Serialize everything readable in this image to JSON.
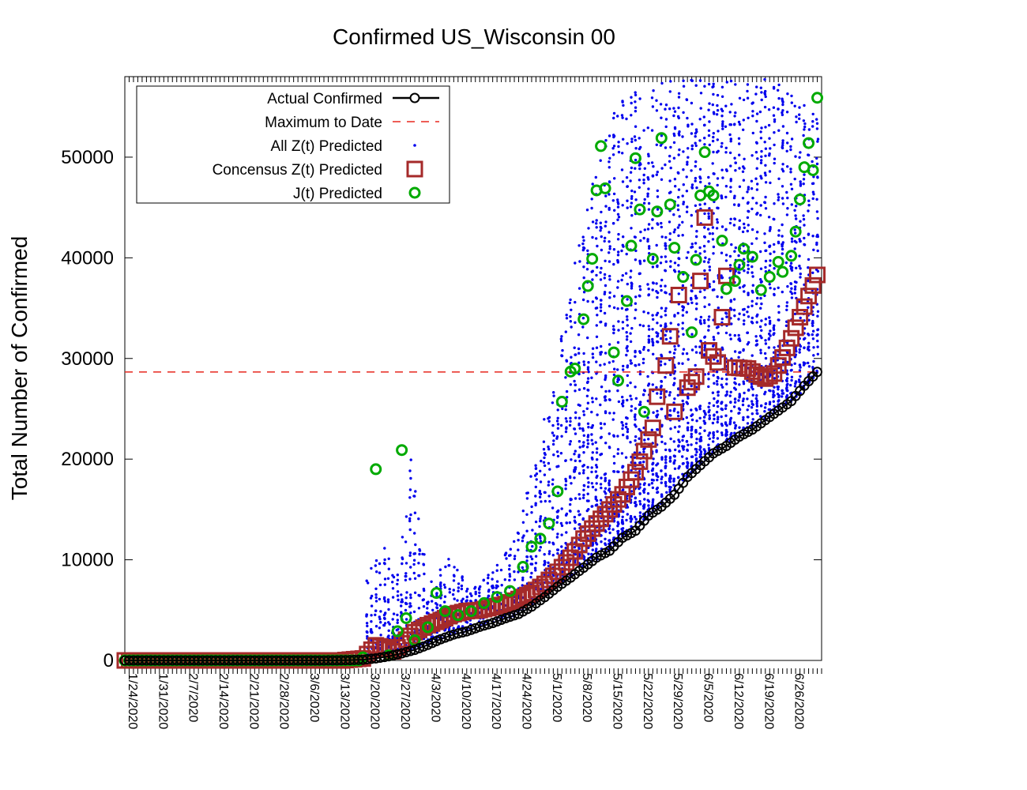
{
  "chart_data": {
    "type": "scatter",
    "title": "Confirmed US_Wisconsin 00",
    "xlabel": "",
    "ylabel": "Total Number of Confirmed",
    "xlim": [
      "1/22/2020",
      "7/1/2020"
    ],
    "ylim": [
      0,
      58000
    ],
    "yticks": [
      0,
      10000,
      20000,
      30000,
      40000,
      50000
    ],
    "ytick_labels": [
      "0",
      "10000",
      "20000",
      "30000",
      "40000",
      "50000"
    ],
    "xtick_labels": [
      "1/24/2020",
      "1/31/2020",
      "2/7/2020",
      "2/14/2020",
      "2/21/2020",
      "2/28/2020",
      "3/6/2020",
      "3/13/2020",
      "3/20/2020",
      "3/27/2020",
      "4/3/2020",
      "4/10/2020",
      "4/17/2020",
      "4/24/2020",
      "5/1/2020",
      "5/8/2020",
      "5/15/2020",
      "5/22/2020",
      "5/29/2020",
      "6/5/2020",
      "6/12/2020",
      "6/19/2020",
      "6/26/2020"
    ],
    "grid": false,
    "legend_position": "top-left",
    "reference_line": {
      "name": "Maximum to Date",
      "value": 28659,
      "color": "#e8281e"
    },
    "series": [
      {
        "name": "Actual Confirmed",
        "style": "line-circle",
        "color": "#000000",
        "points": [
          [
            "1/22/2020",
            0
          ],
          [
            "1/29/2020",
            0
          ],
          [
            "2/5/2020",
            0
          ],
          [
            "2/12/2020",
            0
          ],
          [
            "2/19/2020",
            0
          ],
          [
            "2/26/2020",
            0
          ],
          [
            "3/4/2020",
            0
          ],
          [
            "3/10/2020",
            5
          ],
          [
            "3/14/2020",
            30
          ],
          [
            "3/17/2020",
            72
          ],
          [
            "3/20/2020",
            206
          ],
          [
            "3/23/2020",
            416
          ],
          [
            "3/26/2020",
            707
          ],
          [
            "3/29/2020",
            1055
          ],
          [
            "4/1/2020",
            1550
          ],
          [
            "4/4/2020",
            2112
          ],
          [
            "4/7/2020",
            2578
          ],
          [
            "4/10/2020",
            2885
          ],
          [
            "4/13/2020",
            3341
          ],
          [
            "4/16/2020",
            3721
          ],
          [
            "4/19/2020",
            4199
          ],
          [
            "4/22/2020",
            4620
          ],
          [
            "4/25/2020",
            5356
          ],
          [
            "4/28/2020",
            6289
          ],
          [
            "5/1/2020",
            7314
          ],
          [
            "5/4/2020",
            8236
          ],
          [
            "5/7/2020",
            9215
          ],
          [
            "5/10/2020",
            10219
          ],
          [
            "5/13/2020",
            10902
          ],
          [
            "5/16/2020",
            12187
          ],
          [
            "5/19/2020",
            12885
          ],
          [
            "5/22/2020",
            14396
          ],
          [
            "5/25/2020",
            15277
          ],
          [
            "5/28/2020",
            16462
          ],
          [
            "5/31/2020",
            18230
          ],
          [
            "6/3/2020",
            19400
          ],
          [
            "6/6/2020",
            20571
          ],
          [
            "6/9/2020",
            21308
          ],
          [
            "6/12/2020",
            22246
          ],
          [
            "6/15/2020",
            22932
          ],
          [
            "6/18/2020",
            23876
          ],
          [
            "6/21/2020",
            24819
          ],
          [
            "6/24/2020",
            25763
          ],
          [
            "6/27/2020",
            27286
          ],
          [
            "6/30/2020",
            28659
          ]
        ]
      },
      {
        "name": "Concensus Z(t) Predicted",
        "style": "square",
        "color": "#a52a2a",
        "points": [
          [
            "1/22/2020",
            0
          ],
          [
            "1/29/2020",
            0
          ],
          [
            "2/5/2020",
            0
          ],
          [
            "2/12/2020",
            0
          ],
          [
            "2/19/2020",
            0
          ],
          [
            "2/26/2020",
            0
          ],
          [
            "3/4/2020",
            0
          ],
          [
            "3/12/2020",
            0
          ],
          [
            "3/17/2020",
            200
          ],
          [
            "3/20/2020",
            1500
          ],
          [
            "3/22/2020",
            1300
          ],
          [
            "3/24/2020",
            900
          ],
          [
            "3/26/2020",
            1700
          ],
          [
            "3/29/2020",
            2800
          ],
          [
            "4/1/2020",
            3500
          ],
          [
            "4/4/2020",
            4000
          ],
          [
            "4/7/2020",
            4600
          ],
          [
            "4/10/2020",
            4900
          ],
          [
            "4/13/2020",
            5000
          ],
          [
            "4/16/2020",
            5300
          ],
          [
            "4/19/2020",
            5600
          ],
          [
            "4/22/2020",
            6100
          ],
          [
            "4/25/2020",
            6700
          ],
          [
            "4/28/2020",
            7600
          ],
          [
            "5/1/2020",
            8800
          ],
          [
            "5/4/2020",
            10200
          ],
          [
            "5/7/2020",
            12100
          ],
          [
            "5/10/2020",
            13600
          ],
          [
            "5/13/2020",
            15000
          ],
          [
            "5/16/2020",
            16500
          ],
          [
            "5/19/2020",
            18700
          ],
          [
            "5/21/2020",
            20800
          ],
          [
            "5/23/2020",
            23100
          ],
          [
            "5/24/2020",
            26200
          ],
          [
            "5/26/2020",
            29300
          ],
          [
            "5/27/2020",
            32200
          ],
          [
            "5/28/2020",
            24700
          ],
          [
            "5/29/2020",
            36300
          ],
          [
            "5/31/2020",
            27100
          ],
          [
            "6/2/2020",
            28200
          ],
          [
            "6/3/2020",
            37700
          ],
          [
            "6/4/2020",
            44000
          ],
          [
            "6/5/2020",
            30800
          ],
          [
            "6/7/2020",
            29600
          ],
          [
            "6/8/2020",
            34100
          ],
          [
            "6/9/2020",
            38200
          ],
          [
            "6/11/2020",
            29100
          ],
          [
            "6/14/2020",
            29000
          ],
          [
            "6/16/2020",
            28400
          ],
          [
            "6/18/2020",
            28000
          ],
          [
            "6/20/2020",
            28500
          ],
          [
            "6/22/2020",
            30100
          ],
          [
            "6/24/2020",
            32000
          ],
          [
            "6/26/2020",
            34100
          ],
          [
            "6/28/2020",
            36200
          ],
          [
            "6/30/2020",
            38300
          ]
        ]
      },
      {
        "name": "J(t) Predicted",
        "style": "circle",
        "color": "#00aa00",
        "points": [
          [
            "1/22/2020",
            0
          ],
          [
            "1/29/2020",
            0
          ],
          [
            "2/5/2020",
            0
          ],
          [
            "2/12/2020",
            0
          ],
          [
            "2/19/2020",
            0
          ],
          [
            "2/26/2020",
            0
          ],
          [
            "3/4/2020",
            0
          ],
          [
            "3/12/2020",
            0
          ],
          [
            "3/17/2020",
            300
          ],
          [
            "3/20/2020",
            19000
          ],
          [
            "3/23/2020",
            500
          ],
          [
            "3/25/2020",
            2900
          ],
          [
            "3/26/2020",
            20900
          ],
          [
            "3/27/2020",
            4200
          ],
          [
            "3/29/2020",
            2000
          ],
          [
            "4/1/2020",
            3300
          ],
          [
            "4/3/2020",
            6700
          ],
          [
            "4/5/2020",
            4900
          ],
          [
            "4/8/2020",
            4500
          ],
          [
            "4/11/2020",
            4900
          ],
          [
            "4/14/2020",
            5700
          ],
          [
            "4/17/2020",
            6300
          ],
          [
            "4/20/2020",
            6900
          ],
          [
            "4/23/2020",
            9300
          ],
          [
            "4/25/2020",
            11300
          ],
          [
            "4/27/2020",
            12100
          ],
          [
            "4/29/2020",
            13600
          ],
          [
            "5/1/2020",
            16800
          ],
          [
            "5/2/2020",
            25700
          ],
          [
            "5/4/2020",
            28700
          ],
          [
            "5/5/2020",
            29000
          ],
          [
            "5/7/2020",
            33900
          ],
          [
            "5/8/2020",
            37200
          ],
          [
            "5/9/2020",
            39900
          ],
          [
            "5/10/2020",
            46700
          ],
          [
            "5/11/2020",
            51100
          ],
          [
            "5/12/2020",
            46900
          ],
          [
            "5/14/2020",
            30600
          ],
          [
            "5/15/2020",
            27800
          ],
          [
            "5/17/2020",
            35700
          ],
          [
            "5/18/2020",
            41200
          ],
          [
            "5/19/2020",
            49900
          ],
          [
            "5/20/2020",
            44800
          ],
          [
            "5/21/2020",
            24700
          ],
          [
            "5/23/2020",
            39900
          ],
          [
            "5/24/2020",
            44600
          ],
          [
            "5/25/2020",
            51900
          ],
          [
            "5/27/2020",
            45300
          ],
          [
            "5/28/2020",
            41000
          ],
          [
            "5/30/2020",
            38100
          ],
          [
            "6/1/2020",
            32600
          ],
          [
            "6/2/2020",
            39800
          ],
          [
            "6/3/2020",
            46200
          ],
          [
            "6/4/2020",
            50500
          ],
          [
            "6/5/2020",
            46600
          ],
          [
            "6/6/2020",
            46200
          ],
          [
            "6/8/2020",
            41700
          ],
          [
            "6/9/2020",
            36900
          ],
          [
            "6/11/2020",
            37700
          ],
          [
            "6/12/2020",
            39300
          ],
          [
            "6/13/2020",
            40900
          ],
          [
            "6/15/2020",
            40100
          ],
          [
            "6/17/2020",
            36800
          ],
          [
            "6/19/2020",
            38100
          ],
          [
            "6/21/2020",
            39600
          ],
          [
            "6/22/2020",
            38600
          ],
          [
            "6/24/2020",
            40200
          ],
          [
            "6/25/2020",
            42600
          ],
          [
            "6/26/2020",
            45800
          ],
          [
            "6/27/2020",
            49000
          ],
          [
            "6/28/2020",
            51400
          ],
          [
            "6/29/2020",
            48700
          ],
          [
            "6/30/2020",
            55900
          ]
        ]
      },
      {
        "name": "All Z(t) Predicted",
        "style": "dot",
        "color": "#0000ee",
        "bands": [
          {
            "date": "3/18/2020",
            "min": 100,
            "max": 8500
          },
          {
            "date": "3/21/2020",
            "min": 400,
            "max": 12500
          },
          {
            "date": "3/25/2020",
            "min": 800,
            "max": 9000
          },
          {
            "date": "3/28/2020",
            "min": 1100,
            "max": 21000
          },
          {
            "date": "4/1/2020",
            "min": 1600,
            "max": 7500
          },
          {
            "date": "4/6/2020",
            "min": 2400,
            "max": 10500
          },
          {
            "date": "4/11/2020",
            "min": 3000,
            "max": 7000
          },
          {
            "date": "4/16/2020",
            "min": 3700,
            "max": 9000
          },
          {
            "date": "4/21/2020",
            "min": 4400,
            "max": 12000
          },
          {
            "date": "4/26/2020",
            "min": 5700,
            "max": 20000
          },
          {
            "date": "5/1/2020",
            "min": 7300,
            "max": 30000
          },
          {
            "date": "5/6/2020",
            "min": 9000,
            "max": 42000
          },
          {
            "date": "5/11/2020",
            "min": 10300,
            "max": 52000
          },
          {
            "date": "5/16/2020",
            "min": 12200,
            "max": 56000
          },
          {
            "date": "5/21/2020",
            "min": 14000,
            "max": 57000
          },
          {
            "date": "5/26/2020",
            "min": 16000,
            "max": 57500
          },
          {
            "date": "5/31/2020",
            "min": 18200,
            "max": 57800
          },
          {
            "date": "6/5/2020",
            "min": 20300,
            "max": 57800
          },
          {
            "date": "6/10/2020",
            "min": 21700,
            "max": 57800
          },
          {
            "date": "6/15/2020",
            "min": 23000,
            "max": 57800
          },
          {
            "date": "6/20/2020",
            "min": 24500,
            "max": 57800
          },
          {
            "date": "6/25/2020",
            "min": 26000,
            "max": 56000
          },
          {
            "date": "6/30/2020",
            "min": 28600,
            "max": 54000
          }
        ]
      }
    ]
  },
  "legend": {
    "items": [
      {
        "label": "Actual Confirmed",
        "symbol": "line-circle",
        "color": "#000000"
      },
      {
        "label": "Maximum to Date",
        "symbol": "dash",
        "color": "#e8281e"
      },
      {
        "label": "All Z(t) Predicted",
        "symbol": "dot",
        "color": "#0000ee"
      },
      {
        "label": "Concensus Z(t) Predicted",
        "symbol": "square",
        "color": "#a52a2a"
      },
      {
        "label": "J(t) Predicted",
        "symbol": "circle",
        "color": "#00aa00"
      }
    ]
  }
}
